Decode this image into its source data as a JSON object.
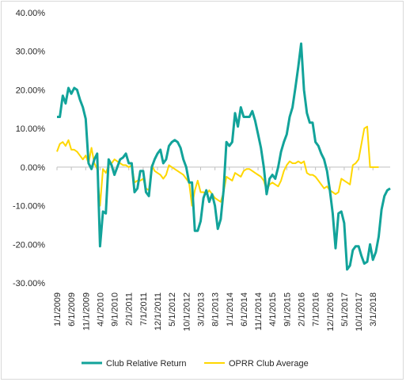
{
  "chart_data": {
    "type": "line",
    "title": "",
    "xlabel": "",
    "ylabel": "",
    "ylim": [
      -0.3,
      0.4
    ],
    "yticks": [
      0.4,
      0.3,
      0.2,
      0.1,
      0.0,
      -0.1,
      -0.2,
      -0.3
    ],
    "ytick_labels": [
      "40.00%",
      "30.00%",
      "20.00%",
      "10.00%",
      "0.00%",
      "-10.00%",
      "-20.00%",
      "-30.00%"
    ],
    "x_tick_labels": [
      "1/1/2009",
      "6/1/2009",
      "11/1/2009",
      "4/1/2010",
      "9/1/2010",
      "2/1/2011",
      "7/1/2011",
      "12/1/2011",
      "5/1/2012",
      "10/1/2012",
      "3/1/2013",
      "8/1/2013",
      "1/1/2014",
      "6/1/2014",
      "11/1/2014",
      "4/1/2015",
      "9/1/2015",
      "2/1/2016",
      "7/1/2016",
      "12/1/2016",
      "5/1/2017",
      "10/1/2017",
      "3/1/2018"
    ],
    "grid": false,
    "legend_position": "bottom",
    "series": [
      {
        "name": "Club Relative Return",
        "color": "#12a39a",
        "values": [
          0.13,
          0.13,
          0.185,
          0.165,
          0.205,
          0.19,
          0.205,
          0.2,
          0.175,
          0.155,
          0.125,
          0.01,
          -0.005,
          0.02,
          0.035,
          -0.205,
          -0.115,
          -0.12,
          0.02,
          0.005,
          -0.02,
          0.0,
          0.02,
          0.025,
          0.035,
          0.01,
          0.01,
          -0.065,
          -0.055,
          -0.01,
          -0.01,
          -0.065,
          -0.075,
          0.0,
          0.02,
          0.035,
          0.045,
          0.01,
          0.02,
          0.055,
          0.065,
          0.07,
          0.065,
          0.05,
          0.02,
          0.0,
          -0.04,
          -0.04,
          -0.165,
          -0.165,
          -0.14,
          -0.08,
          -0.06,
          -0.09,
          -0.07,
          -0.1,
          -0.16,
          -0.135,
          -0.06,
          0.065,
          0.055,
          0.065,
          0.14,
          0.105,
          0.155,
          0.13,
          0.13,
          0.13,
          0.145,
          0.12,
          0.085,
          0.05,
          0.0,
          -0.07,
          -0.03,
          -0.02,
          -0.03,
          0.0,
          0.04,
          0.065,
          0.085,
          0.13,
          0.155,
          0.205,
          0.26,
          0.32,
          0.2,
          0.14,
          0.115,
          0.115,
          0.065,
          0.055,
          0.035,
          0.02,
          -0.01,
          -0.06,
          -0.12,
          -0.21,
          -0.12,
          -0.115,
          -0.145,
          -0.265,
          -0.255,
          -0.215,
          -0.205,
          -0.205,
          -0.23,
          -0.25,
          -0.245,
          -0.2,
          -0.24,
          -0.22,
          -0.18,
          -0.11,
          -0.075,
          -0.06,
          -0.055
        ]
      },
      {
        "name": "OPRR Club Average",
        "color": "#ffd700",
        "values": [
          0.04,
          0.06,
          0.065,
          0.055,
          0.07,
          0.045,
          0.045,
          0.04,
          0.03,
          0.02,
          0.03,
          0.01,
          0.05,
          0.01,
          -0.005,
          -0.1,
          -0.005,
          -0.015,
          0.005,
          0.01,
          0.02,
          0.015,
          0.01,
          0.005,
          0.005,
          0.0,
          0.005,
          -0.04,
          -0.035,
          -0.035,
          -0.03,
          -0.055,
          -0.06,
          0.005,
          -0.01,
          -0.015,
          -0.02,
          -0.03,
          -0.02,
          0.005,
          0.0,
          -0.005,
          -0.01,
          -0.015,
          -0.02,
          -0.03,
          -0.04,
          -0.1,
          -0.06,
          -0.035,
          -0.065,
          -0.065,
          -0.07,
          -0.06,
          -0.07,
          -0.08,
          -0.085,
          -0.09,
          -0.065,
          -0.025,
          -0.03,
          -0.035,
          -0.015,
          -0.02,
          -0.025,
          -0.01,
          -0.005,
          -0.005,
          -0.01,
          -0.015,
          -0.02,
          -0.025,
          -0.035,
          -0.06,
          -0.045,
          -0.04,
          -0.045,
          -0.05,
          -0.035,
          -0.01,
          0.005,
          0.015,
          0.01,
          0.01,
          0.015,
          0.01,
          0.015,
          -0.015,
          -0.02,
          -0.02,
          -0.025,
          -0.035,
          -0.045,
          -0.055,
          -0.05,
          -0.06,
          -0.065,
          -0.07,
          -0.065,
          -0.03,
          -0.035,
          -0.04,
          -0.045,
          0.005,
          0.01,
          0.02,
          0.06,
          0.1,
          0.105,
          0.0,
          0.0,
          0.0,
          0.0
        ]
      }
    ]
  }
}
